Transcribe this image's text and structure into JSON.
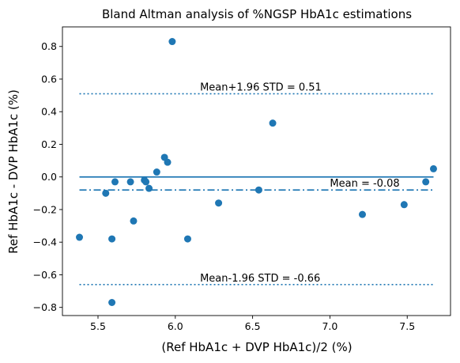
{
  "chart_data": {
    "type": "scatter",
    "title": "Bland Altman analysis of %NGSP HbA1c estimations",
    "xlabel": "(Ref HbA1c + DVP HbA1c)/2 (%)",
    "ylabel": "Ref HbA1c - DVP HbA1c (%)",
    "xlim": [
      5.27,
      7.78
    ],
    "ylim": [
      -0.85,
      0.92
    ],
    "xticks": [
      5.5,
      6.0,
      6.5,
      7.0,
      7.5
    ],
    "xtick_labels": [
      "5.5",
      "6.0",
      "6.5",
      "7.0",
      "7.5"
    ],
    "yticks": [
      -0.8,
      -0.6,
      -0.4,
      -0.2,
      0.0,
      0.2,
      0.4,
      0.6,
      0.8
    ],
    "ytick_labels": [
      "−0.8",
      "−0.6",
      "−0.4",
      "−0.2",
      "0.0",
      "0.2",
      "0.4",
      "0.6",
      "0.8"
    ],
    "grid": false,
    "legend": "none",
    "point_color": "#1f77b4",
    "line_color": "#1f77b4",
    "line_x_range": [
      5.38,
      7.67
    ],
    "points": [
      {
        "x": 5.38,
        "y": -0.37
      },
      {
        "x": 5.55,
        "y": -0.1
      },
      {
        "x": 5.59,
        "y": -0.38
      },
      {
        "x": 5.59,
        "y": -0.77
      },
      {
        "x": 5.61,
        "y": -0.03
      },
      {
        "x": 5.71,
        "y": -0.03
      },
      {
        "x": 5.73,
        "y": -0.27
      },
      {
        "x": 5.8,
        "y": -0.02
      },
      {
        "x": 5.81,
        "y": -0.03
      },
      {
        "x": 5.83,
        "y": -0.07
      },
      {
        "x": 5.88,
        "y": 0.03
      },
      {
        "x": 5.93,
        "y": 0.12
      },
      {
        "x": 5.95,
        "y": 0.09
      },
      {
        "x": 5.98,
        "y": 0.83
      },
      {
        "x": 6.08,
        "y": -0.38
      },
      {
        "x": 6.28,
        "y": -0.16
      },
      {
        "x": 6.54,
        "y": -0.08
      },
      {
        "x": 6.63,
        "y": 0.33
      },
      {
        "x": 7.21,
        "y": -0.23
      },
      {
        "x": 7.48,
        "y": -0.17
      },
      {
        "x": 7.62,
        "y": -0.03
      },
      {
        "x": 7.67,
        "y": 0.05
      }
    ],
    "reference_lines": [
      {
        "id": "zero",
        "y": 0.0,
        "style": "solid",
        "label": ""
      },
      {
        "id": "mean",
        "y": -0.08,
        "style": "dashdot",
        "label": "Mean = -0.08",
        "label_x": 7.0
      },
      {
        "id": "upper",
        "y": 0.51,
        "style": "dotted",
        "label": "Mean+1.96 STD = 0.51",
        "label_x": 6.16
      },
      {
        "id": "lower",
        "y": -0.66,
        "style": "dotted",
        "label": "Mean-1.96 STD = -0.66",
        "label_x": 6.16
      }
    ]
  }
}
